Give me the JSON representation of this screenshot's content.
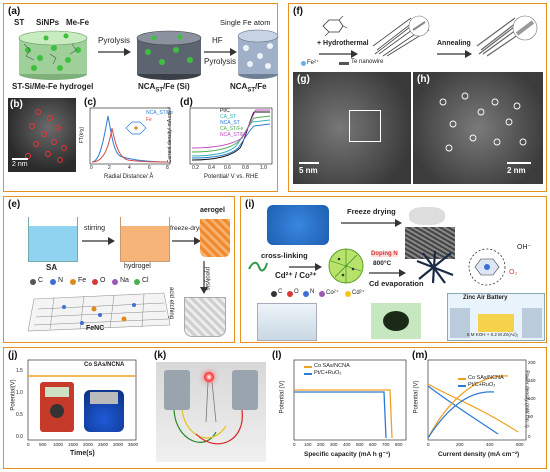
{
  "panel_a": {
    "label": "(a)",
    "st": "ST",
    "sinps": "SiNPs",
    "mefe": "Me-Fe",
    "pyrolysis": "Pyrolysis",
    "hf": "HF",
    "hf_pyrolysis": "Pyrolysis",
    "single_fe": "Single Fe atom",
    "cap1": "ST-Si/Me-Fe hydrogel",
    "cap2": "NCA",
    "cap2_sub": "ST",
    "cap2_tail": "/Fe (Si)",
    "cap3": "NCA",
    "cap3_sub": "ST",
    "cap3_tail": "/Fe"
  },
  "panel_b": {
    "label": "(b)",
    "scale": "2 nm"
  },
  "panel_c": {
    "label": "(c)",
    "ylabel": "FT(k³χ)",
    "xlabel": "Radial Distance/ Å",
    "legend": [
      "NCA_ST/Fe",
      "Fe"
    ],
    "xticks": [
      "0",
      "2",
      "4",
      "6",
      "8"
    ]
  },
  "panel_d": {
    "label": "(d)",
    "ylabel": "Current density/ mA cm⁻²",
    "xlabel": "Potential/ V vs. RHE",
    "legend": [
      "Pt/C",
      "CA_ST",
      "NCA_ST",
      "CA_ST/Fe",
      "NCA_ST/Fe"
    ],
    "xticks": [
      "0.2",
      "0.4",
      "0.6",
      "0.8",
      "1.0"
    ]
  },
  "panel_e": {
    "label": "(e)",
    "sa": "SA",
    "stirring": "stirring",
    "hydrogel": "hydrogel",
    "freeze": "freeze-drying",
    "aerogel": "aerogel",
    "pyrolysis": "pyrolysis",
    "acid": "acid etching",
    "fenc": "FeNC",
    "legend": [
      "C",
      "N",
      "Fe",
      "O",
      "Na",
      "Cl"
    ],
    "legend_colors": [
      "#555555",
      "#3b6fd6",
      "#e08a1c",
      "#d43a3a",
      "#9b59b6",
      "#4caf50"
    ]
  },
  "panel_f": {
    "label": "(f)",
    "hydrothermal": "+ Hydrothermal",
    "annealing": "Annealing",
    "fe": "Fe²⁺",
    "te": "Te nanowire"
  },
  "panel_g": {
    "label": "(g)",
    "scale": "5 nm"
  },
  "panel_h": {
    "label": "(h)",
    "scale": "2 nm"
  },
  "panel_i": {
    "label": "(i)",
    "freeze": "Freeze drying",
    "crosslink": "cross-linking",
    "ions": "Cd²⁺ / Co²⁺",
    "doping": "Doping N",
    "temp": "800°C",
    "evap": "Cd evaporation",
    "oh": "OH⁻",
    "o2": "O₂",
    "zab": "Zinc Air Battery",
    "electrolyte": "6 M KOH + 0.2 M Zn(Ac)₂",
    "legend": [
      "C",
      "O",
      "N",
      "Co²⁺",
      "Cd²⁺"
    ],
    "legend_colors": [
      "#333333",
      "#d43a3a",
      "#3b6fd6",
      "#9b59b6",
      "#f5c518"
    ]
  },
  "panel_j": {
    "label": "(j)",
    "ylabel": "Potential(V)",
    "xlabel": "Time(s)",
    "legend": "Co SAs/NCNA",
    "xticks": [
      "0",
      "500",
      "1000",
      "1500",
      "2000",
      "2500",
      "3000",
      "3500"
    ],
    "yticks": [
      "0.0",
      "0.5",
      "1.0",
      "1.5"
    ]
  },
  "panel_k": {
    "label": "(k)"
  },
  "panel_l": {
    "label": "(l)",
    "ylabel": "Potential (V)",
    "xlabel": "Specific capacity",
    "xunit": "(mA h g⁻¹)",
    "legend": [
      "Co SAs/NCNA",
      "Pt/C+RuO₂"
    ],
    "xticks": [
      "0",
      "100",
      "200",
      "300",
      "400",
      "500",
      "600",
      "700",
      "800"
    ]
  },
  "panel_m": {
    "label": "(m)",
    "ylabel": "Potential (V)",
    "ylabel2": "Power density (mW cm⁻²)",
    "xlabel": "Current density (mA cm⁻²)",
    "legend": [
      "Co SAs/NCNA",
      "Pt/C+RuO₂"
    ],
    "xticks": [
      "0",
      "200",
      "400",
      "600"
    ],
    "yticks2": [
      "0",
      "50",
      "100",
      "150",
      "200"
    ]
  },
  "colors": {
    "frame": "#e8911f",
    "orange": "#f0a020",
    "blue": "#2b7bd6"
  }
}
